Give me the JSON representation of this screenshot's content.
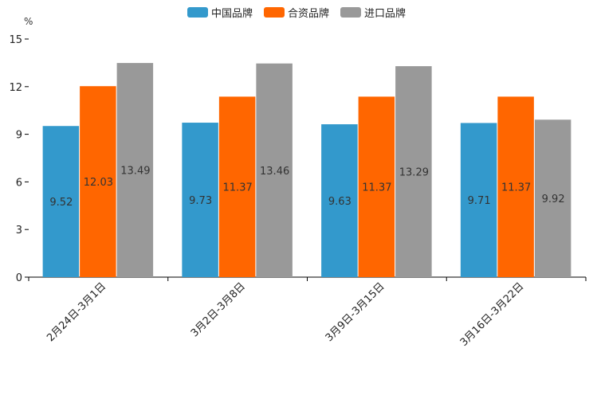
{
  "chart_data": {
    "type": "bar",
    "unit": "%",
    "categories": [
      "2月24日-3月1日",
      "3月2日-3月8日",
      "3月9日-3月15日",
      "3月16日-3月22日"
    ],
    "series": [
      {
        "name": "中国品牌",
        "color": "#3399cc",
        "values": [
          9.52,
          9.73,
          9.63,
          9.71
        ]
      },
      {
        "name": "合资品牌",
        "color": "#ff6600",
        "values": [
          12.03,
          11.37,
          11.37,
          11.37
        ]
      },
      {
        "name": "进口品牌",
        "color": "#999999",
        "values": [
          13.49,
          13.46,
          13.29,
          9.92
        ]
      }
    ],
    "ylim": [
      0,
      15
    ],
    "yticks": [
      "0",
      "3",
      "6",
      "9",
      "12",
      "15"
    ],
    "legend_position": "top-center"
  }
}
